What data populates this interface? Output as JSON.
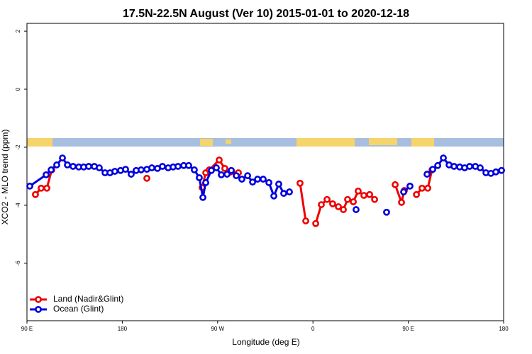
{
  "chart_data": {
    "type": "line",
    "title": "17.5N-22.5N August (Ver 10)   2015-01-01 to 2020-12-18",
    "x_label": "Longitude (deg E)",
    "y_label": "XCO2 - MLO trend (ppm)",
    "xlim": [
      90,
      540
    ],
    "ylim": [
      -7.98,
      2.27
    ],
    "xticks": [
      {
        "value": 90,
        "label": "90 E"
      },
      180,
      {
        "value": 270,
        "label": "90 W"
      },
      {
        "value": 360,
        "label": "0"
      },
      {
        "value": 450,
        "label": "90 E"
      },
      {
        "value": 540,
        "label": "180"
      }
    ],
    "yticks": [
      2,
      0,
      -2,
      -4,
      -6
    ],
    "legend": "bottom-left",
    "series": [
      {
        "name": "Land (Nadir&Glint)",
        "color": "#ee0000",
        "x": [
          98.0,
          103.4,
          108.8,
          113.4,
          null,
          203.2,
          null,
          255.4,
          258.8,
          262.1,
          271.5,
          276.8,
          282.2,
          287.6,
          289.6,
          null,
          347.8,
          353.2,
          null,
          362.6,
          367.9,
          373.3,
          378.6,
          384.0,
          388.7,
          392.7,
          398.1,
          402.7,
          408.1,
          413.5,
          418.2,
          null,
          437.6,
          443.6,
          446.3,
          null,
          457.7,
          463.0,
          468.4,
          472.4
        ],
        "values": [
          -3.63,
          -3.41,
          -3.41,
          -2.78,
          null,
          -3.07,
          null,
          -3.39,
          -2.88,
          -2.78,
          -2.44,
          -2.73,
          -2.85,
          -2.93,
          -2.88,
          null,
          -3.24,
          -4.54,
          null,
          -4.63,
          -3.98,
          -3.8,
          -3.95,
          -4.05,
          -4.15,
          -3.8,
          -3.88,
          -3.51,
          -3.66,
          -3.63,
          -3.8,
          null,
          -3.29,
          -3.9,
          -3.49,
          null,
          -3.63,
          -3.41,
          -3.41,
          -2.78
        ]
      },
      {
        "name": "Ocean (Glint)",
        "color": "#0000dd",
        "x": [
          92.7,
          108.1,
          112.8,
          118.1,
          123.5,
          128.2,
          133.5,
          138.9,
          143.6,
          148.3,
          153.6,
          158.3,
          163.7,
          168.4,
          173.0,
          178.4,
          183.1,
          188.4,
          193.1,
          197.8,
          203.2,
          207.9,
          213.2,
          217.9,
          223.3,
          228.0,
          232.6,
          238.0,
          242.7,
          248.0,
          252.7,
          256.1,
          258.8,
          264.1,
          268.8,
          273.5,
          278.9,
          282.9,
          287.6,
          292.9,
          298.3,
          303.0,
          307.7,
          313.0,
          318.4,
          323.1,
          327.7,
          332.4,
          337.8,
          null,
          400.7,
          null,
          429.5,
          null,
          445.6,
          451.6,
          null,
          467.7,
          473.1,
          477.8,
          483.1,
          488.5,
          493.2,
          498.5,
          503.2,
          507.9,
          513.3,
          517.9,
          523.3,
          528.0,
          532.7,
          538.0
        ],
        "values": [
          -3.34,
          -2.95,
          -2.78,
          -2.61,
          -2.37,
          -2.61,
          -2.66,
          -2.68,
          -2.68,
          -2.66,
          -2.66,
          -2.71,
          -2.88,
          -2.88,
          -2.83,
          -2.8,
          -2.76,
          -2.93,
          -2.8,
          -2.78,
          -2.76,
          -2.71,
          -2.73,
          -2.66,
          -2.71,
          -2.68,
          -2.66,
          -2.63,
          -2.63,
          -2.78,
          -3.05,
          -3.73,
          -3.22,
          -2.8,
          -2.71,
          -2.95,
          -2.93,
          -2.8,
          -2.98,
          -3.1,
          -2.98,
          -3.2,
          -3.1,
          -3.1,
          -3.22,
          -3.68,
          -3.27,
          -3.59,
          -3.54,
          null,
          -4.15,
          null,
          -4.24,
          null,
          -3.54,
          -3.34,
          null,
          -2.93,
          -2.76,
          -2.63,
          -2.37,
          -2.61,
          -2.66,
          -2.68,
          -2.71,
          -2.66,
          -2.66,
          -2.71,
          -2.88,
          -2.9,
          -2.85,
          -2.8
        ]
      }
    ]
  }
}
